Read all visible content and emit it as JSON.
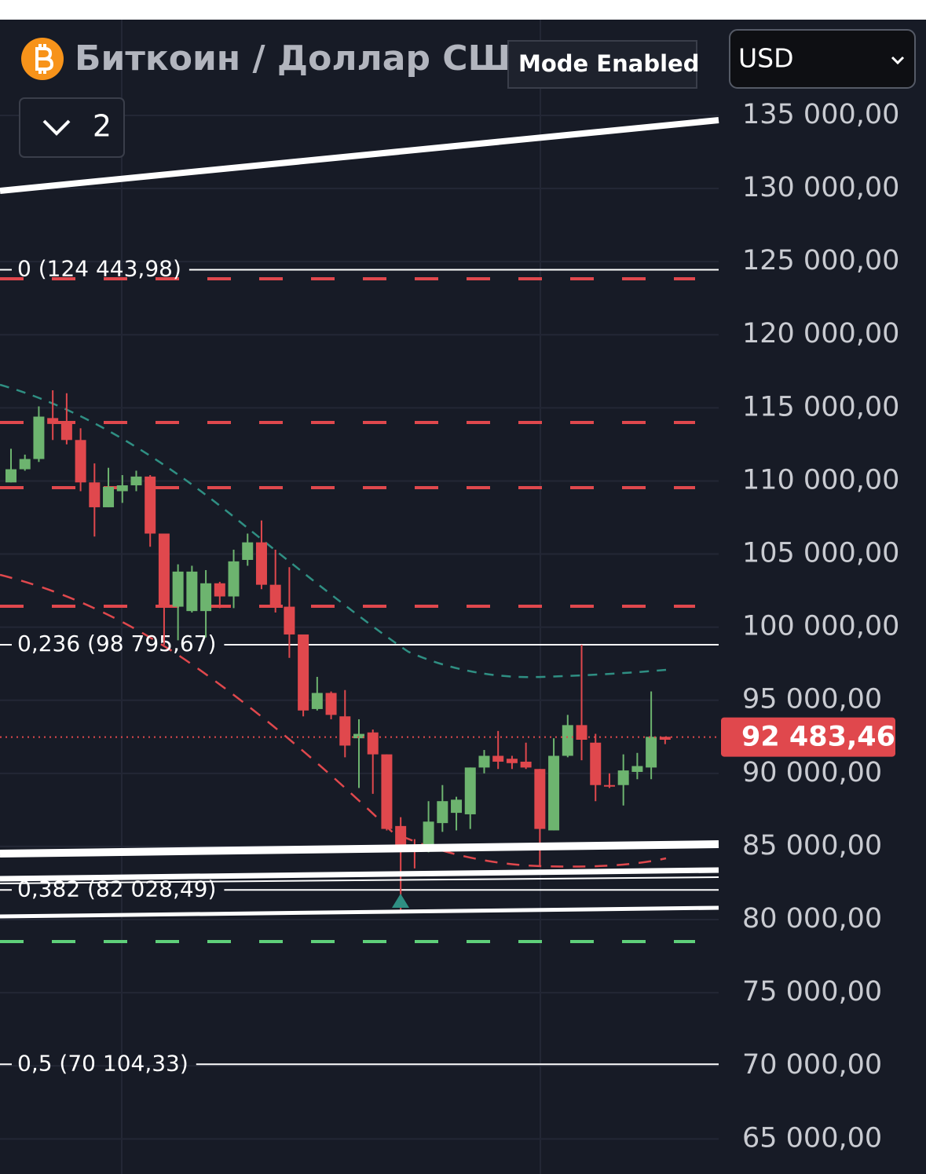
{
  "header": {
    "title": "Биткоин / Доллар США",
    "mode": "Mode Enabled",
    "currency": "USD",
    "layers": "2"
  },
  "chart_data": {
    "type": "candlestick",
    "open": [
      109900,
      110800,
      111500,
      114300,
      114000,
      112800,
      109900,
      108200,
      109300,
      109700,
      110300,
      106400,
      101400,
      101100,
      101100,
      103000,
      102100,
      104600,
      105800,
      102900,
      101400,
      99500,
      94400,
      95500,
      93900,
      92400,
      92800,
      91300,
      86400,
      85100,
      84700,
      86600,
      87300,
      87200,
      90400,
      91200,
      91000,
      90800,
      90300,
      86100,
      91200,
      93300,
      92100,
      89200,
      89200,
      90100,
      90400,
      92500
    ],
    "high": [
      112200,
      111800,
      115100,
      116200,
      116000,
      113600,
      111200,
      110900,
      110400,
      110700,
      110400,
      106400,
      104300,
      104200,
      103900,
      103100,
      105300,
      106400,
      107300,
      105300,
      104100,
      99500,
      96600,
      95600,
      95700,
      93700,
      93000,
      91300,
      87000,
      85500,
      88100,
      89200,
      88400,
      90400,
      91600,
      92900,
      91200,
      92100,
      90300,
      92400,
      94000,
      98800,
      92700,
      90000,
      91300,
      91400,
      95600,
      92500
    ],
    "low": [
      109900,
      110700,
      111300,
      112800,
      112500,
      109300,
      106200,
      108200,
      108500,
      109300,
      105500,
      98800,
      99100,
      101000,
      99300,
      101300,
      101300,
      104200,
      102600,
      101000,
      97900,
      93900,
      94300,
      93700,
      91100,
      89000,
      88600,
      86100,
      80500,
      83500,
      84600,
      86000,
      86100,
      86200,
      90000,
      90300,
      90300,
      90300,
      83700,
      86100,
      91100,
      90900,
      88100,
      89000,
      87800,
      89600,
      89600,
      92000
    ],
    "close": [
      110800,
      111500,
      114400,
      113900,
      112800,
      109900,
      108200,
      109600,
      109700,
      110300,
      106400,
      101400,
      103800,
      103800,
      103000,
      102100,
      104500,
      105800,
      102900,
      101400,
      99500,
      94300,
      95500,
      94000,
      91900,
      92700,
      91300,
      86200,
      85000,
      84700,
      86700,
      88100,
      88200,
      90400,
      91200,
      90800,
      90700,
      90400,
      86200,
      91200,
      93300,
      92300,
      89200,
      89100,
      90200,
      90500,
      92500,
      92300
    ],
    "colors": {
      "up": "#6db46f",
      "down": "#e0484d"
    },
    "ylim": [
      62600,
      141550
    ],
    "yticks": [
      {
        "value": 135000,
        "label": "135 000,00"
      },
      {
        "value": 130000,
        "label": "130 000,00"
      },
      {
        "value": 125000,
        "label": "125 000,00"
      },
      {
        "value": 120000,
        "label": "120 000,00"
      },
      {
        "value": 115000,
        "label": "115 000,00"
      },
      {
        "value": 110000,
        "label": "110 000,00"
      },
      {
        "value": 105000,
        "label": "105 000,00"
      },
      {
        "value": 100000,
        "label": "100 000,00"
      },
      {
        "value": 95000,
        "label": "95 000,00"
      },
      {
        "value": 90000,
        "label": "90 000,00"
      },
      {
        "value": 85000,
        "label": "85 000,00"
      },
      {
        "value": 80000,
        "label": "80 000,00"
      },
      {
        "value": 75000,
        "label": "75 000,00"
      },
      {
        "value": 70000,
        "label": "70 000,00"
      },
      {
        "value": 65000,
        "label": "65 000,00"
      }
    ],
    "levels": [
      {
        "label": "0 (124 443,98)",
        "value": 124443.98
      },
      {
        "label": "0,236 (98 795,67)",
        "value": 98795.67
      },
      {
        "label": "0,382 (82 028,49)",
        "value": 82028.49
      },
      {
        "label": "0,5 (70 104,33)",
        "value": 70104.33
      }
    ],
    "last_price": {
      "value": 92483.46,
      "label": "92 483,46"
    }
  }
}
